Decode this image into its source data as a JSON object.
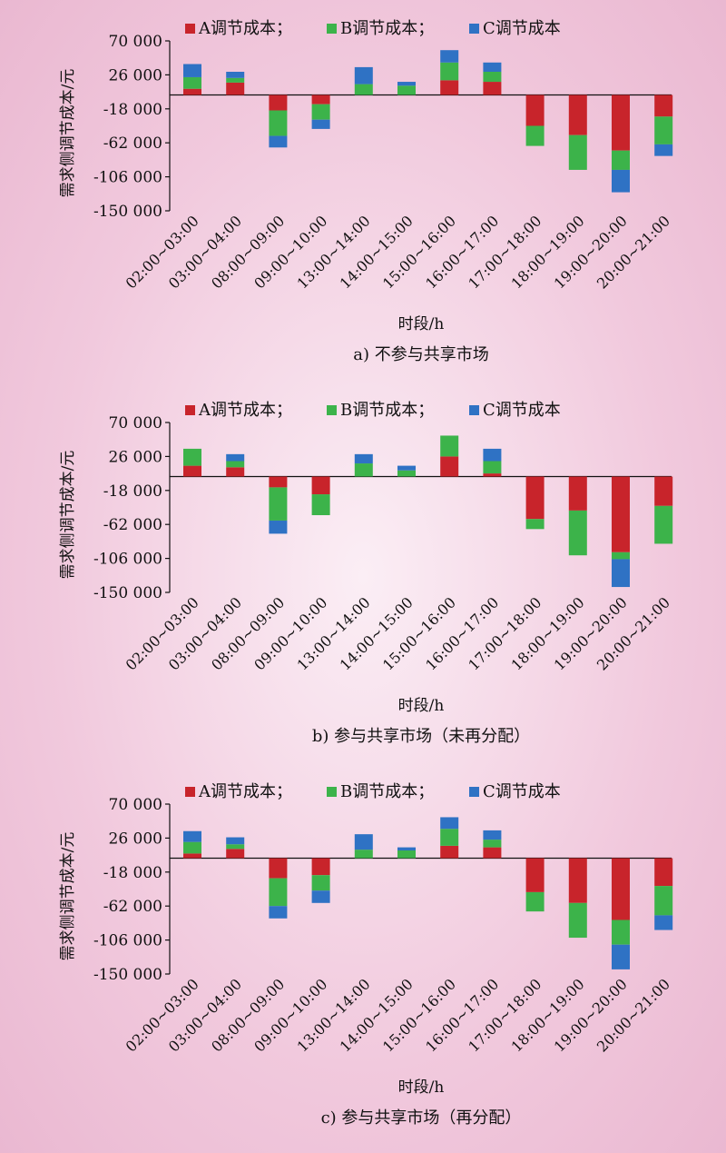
{
  "chart_data": [
    {
      "type": "bar",
      "stacked": true,
      "title": "",
      "caption": "a) 不参与共享市场",
      "xlabel": "时段/h",
      "ylabel": "需求侧调节成本/元",
      "ylim": [
        -150000,
        70000
      ],
      "yticks": [
        70000,
        26000,
        -18000,
        -62000,
        -106000,
        -150000
      ],
      "ytick_labels": [
        "70 000",
        "26 000",
        "-18 000",
        "-62 000",
        "-106 000",
        "-150 000"
      ],
      "legend_position": "top",
      "colors": [
        "#c8242b",
        "#3cb34a",
        "#2f72c4"
      ],
      "categories": [
        "02:00~03:00",
        "03:00~04:00",
        "08:00~09:00",
        "09:00~10:00",
        "13:00~14:00",
        "14:00~15:00",
        "15:00~16:00",
        "16:00~17:00",
        "17:00~18:00",
        "18:00~19:00",
        "19:00~20:00",
        "20:00~21:00"
      ],
      "series": [
        {
          "name": "A调节成本；",
          "values": [
            8000,
            16000,
            -20000,
            -12000,
            0,
            0,
            19000,
            17000,
            -40000,
            -52000,
            -72000,
            -28000
          ]
        },
        {
          "name": "B调节成本；",
          "values": [
            15000,
            6000,
            -33000,
            -20000,
            14000,
            12000,
            23000,
            13000,
            -26000,
            -45000,
            -25000,
            -36000
          ]
        },
        {
          "name": "C调节成本",
          "values": [
            17000,
            8000,
            -15000,
            -12000,
            22000,
            5000,
            16000,
            12000,
            0,
            0,
            -29000,
            -15000
          ]
        }
      ]
    },
    {
      "type": "bar",
      "stacked": true,
      "title": "",
      "caption": "b) 参与共享市场（未再分配）",
      "xlabel": "时段/h",
      "ylabel": "需求侧调节成本/元",
      "ylim": [
        -150000,
        70000
      ],
      "yticks": [
        70000,
        26000,
        -18000,
        -62000,
        -106000,
        -150000
      ],
      "ytick_labels": [
        "70 000",
        "26 000",
        "-18 000",
        "-62 000",
        "-106 000",
        "-150 000"
      ],
      "legend_position": "top",
      "colors": [
        "#c8242b",
        "#3cb34a",
        "#2f72c4"
      ],
      "categories": [
        "02:00~03:00",
        "03:00~04:00",
        "08:00~09:00",
        "09:00~10:00",
        "13:00~14:00",
        "14:00~15:00",
        "15:00~16:00",
        "16:00~17:00",
        "17:00~18:00",
        "18:00~19:00",
        "19:00~20:00",
        "20:00~21:00"
      ],
      "series": [
        {
          "name": "A调节成本；",
          "values": [
            14000,
            12000,
            -14000,
            -23000,
            0,
            0,
            26000,
            4000,
            -55000,
            -44000,
            -98000,
            -38000
          ]
        },
        {
          "name": "B调节成本；",
          "values": [
            22000,
            8000,
            -43000,
            -27000,
            17000,
            8000,
            27000,
            16000,
            -13000,
            -58000,
            -9000,
            -49000
          ]
        },
        {
          "name": "C调节成本",
          "values": [
            0,
            9000,
            -17000,
            0,
            12000,
            6000,
            0,
            16000,
            0,
            0,
            -36000,
            0
          ]
        }
      ]
    },
    {
      "type": "bar",
      "stacked": true,
      "title": "",
      "caption": "c) 参与共享市场（再分配）",
      "xlabel": "时段/h",
      "ylabel": "需求侧调节成本/元",
      "ylim": [
        -150000,
        70000
      ],
      "yticks": [
        70000,
        26000,
        -18000,
        -62000,
        -106000,
        -150000
      ],
      "ytick_labels": [
        "70 000",
        "26 000",
        "-18 000",
        "-62 000",
        "-106 000",
        "-150 000"
      ],
      "legend_position": "top",
      "colors": [
        "#c8242b",
        "#3cb34a",
        "#2f72c4"
      ],
      "categories": [
        "02:00~03:00",
        "03:00~04:00",
        "08:00~09:00",
        "09:00~10:00",
        "13:00~14:00",
        "14:00~15:00",
        "15:00~16:00",
        "16:00~17:00",
        "17:00~18:00",
        "18:00~19:00",
        "19:00~20:00",
        "20:00~21:00"
      ],
      "series": [
        {
          "name": "A调节成本；",
          "values": [
            6000,
            12000,
            -26000,
            -22000,
            0,
            0,
            16000,
            14000,
            -44000,
            -58000,
            -80000,
            -36000
          ]
        },
        {
          "name": "B调节成本；",
          "values": [
            15000,
            6000,
            -36000,
            -20000,
            11000,
            10000,
            22000,
            10000,
            -25000,
            -45000,
            -32000,
            -38000
          ]
        },
        {
          "name": "C调节成本",
          "values": [
            14000,
            9000,
            -16000,
            -16000,
            20000,
            4000,
            15000,
            12000,
            0,
            0,
            -32000,
            -19000
          ]
        }
      ]
    }
  ]
}
